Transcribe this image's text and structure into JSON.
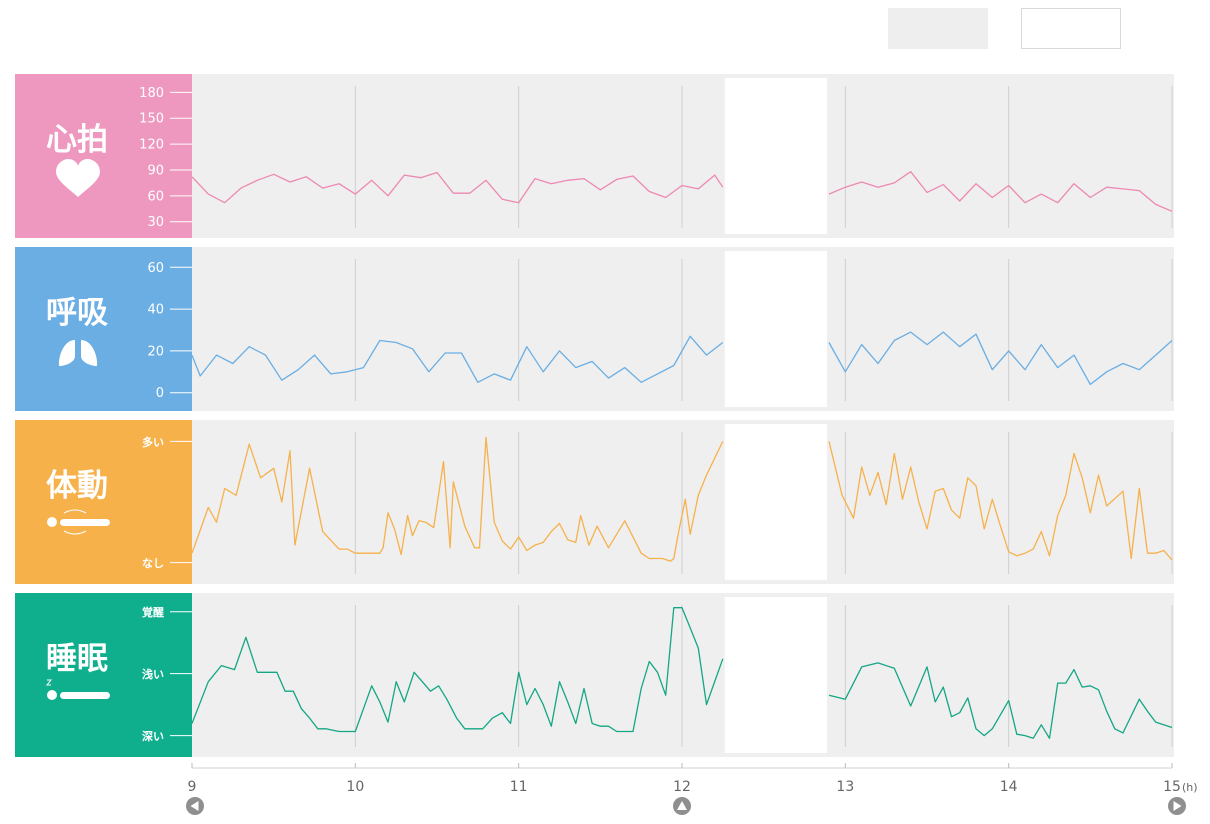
{
  "toolbar": {
    "button_a": "",
    "button_b": ""
  },
  "nav": {
    "prev_icon": "triangle-left-icon",
    "now_icon": "triangle-up-icon",
    "next_icon": "triangle-right-icon"
  },
  "panels": [
    {
      "key": "heart",
      "title": "心拍",
      "icon": "heart-icon",
      "color": "#ee98bf",
      "line": "#ee88b3",
      "ticks": [
        "180",
        "150",
        "120",
        "90",
        "60",
        "30"
      ]
    },
    {
      "key": "breath",
      "title": "呼吸",
      "icon": "lungs-icon",
      "color": "#6aaee3",
      "line": "#6aaee3",
      "ticks": [
        "60",
        "40",
        "20",
        "0"
      ]
    },
    {
      "key": "motion",
      "title": "体動",
      "icon": "lying-person-moving-icon",
      "color": "#f6b14b",
      "line": "#f6b14b",
      "ticks": [
        "多い",
        "なし"
      ]
    },
    {
      "key": "sleep",
      "title": "睡眠",
      "icon": "sleeping-person-icon",
      "color": "#0faf8e",
      "line": "#14a685",
      "ticks": [
        "覚醒",
        "浅い",
        "深い"
      ]
    }
  ],
  "chart_data": {
    "type": "line",
    "x_unit": "(h)",
    "x_ticks": [
      9,
      10,
      11,
      12,
      13,
      14,
      15
    ],
    "xlim": [
      9,
      15
    ],
    "gap": [
      12.25,
      12.9
    ],
    "grid": true,
    "series": [
      {
        "name": "心拍",
        "ylim": [
          25,
          185
        ],
        "ticks": [
          180,
          150,
          120,
          90,
          60,
          30
        ],
        "x": [
          9.0,
          9.1,
          9.2,
          9.3,
          9.4,
          9.5,
          9.6,
          9.7,
          9.8,
          9.9,
          10.0,
          10.1,
          10.2,
          10.3,
          10.4,
          10.5,
          10.6,
          10.7,
          10.8,
          10.9,
          11.0,
          11.1,
          11.2,
          11.3,
          11.4,
          11.5,
          11.6,
          11.7,
          11.8,
          11.9,
          12.0,
          12.1,
          12.2,
          12.25,
          12.9,
          13.0,
          13.1,
          13.2,
          13.3,
          13.4,
          13.5,
          13.6,
          13.7,
          13.8,
          13.9,
          14.0,
          14.1,
          14.2,
          14.3,
          14.4,
          14.5,
          14.6,
          14.7,
          14.8,
          14.9,
          15.0
        ],
        "values": [
          82,
          62,
          52,
          69,
          78,
          85,
          76,
          82,
          69,
          74,
          62,
          78,
          60,
          84,
          81,
          87,
          63,
          63,
          78,
          56,
          52,
          80,
          74,
          78,
          80,
          67,
          79,
          83,
          65,
          58,
          72,
          68,
          84,
          70,
          62,
          70,
          76,
          70,
          75,
          88,
          64,
          73,
          54,
          74,
          58,
          72,
          52,
          62,
          52,
          74,
          58,
          70,
          68,
          66,
          50,
          42
        ]
      },
      {
        "name": "呼吸",
        "ylim": [
          -3,
          63
        ],
        "ticks": [
          60,
          40,
          20,
          0
        ],
        "x": [
          9.0,
          9.05,
          9.15,
          9.25,
          9.35,
          9.45,
          9.55,
          9.65,
          9.75,
          9.85,
          9.95,
          10.05,
          10.15,
          10.25,
          10.35,
          10.45,
          10.55,
          10.65,
          10.75,
          10.85,
          10.95,
          11.05,
          11.15,
          11.25,
          11.35,
          11.45,
          11.55,
          11.65,
          11.75,
          11.85,
          11.95,
          12.05,
          12.15,
          12.25,
          12.9,
          13.0,
          13.1,
          13.2,
          13.3,
          13.4,
          13.5,
          13.6,
          13.7,
          13.8,
          13.9,
          14.0,
          14.1,
          14.2,
          14.3,
          14.4,
          14.5,
          14.6,
          14.7,
          14.8,
          14.9,
          15.0
        ],
        "values": [
          18,
          8,
          18,
          14,
          22,
          18,
          6,
          11,
          18,
          9,
          10,
          12,
          25,
          24,
          21,
          10,
          19,
          19,
          5,
          9,
          6,
          22,
          10,
          20,
          12,
          15,
          7,
          12,
          5,
          9,
          13,
          27,
          18,
          24,
          24,
          10,
          23,
          14,
          25,
          29,
          23,
          29,
          22,
          28,
          11,
          20,
          11,
          23,
          12,
          18,
          4,
          10,
          14,
          11,
          18,
          25
        ]
      },
      {
        "name": "体動",
        "ylim": [
          -2,
          102
        ],
        "ticks": [
          95,
          5
        ],
        "x": [
          9.0,
          9.1,
          9.15,
          9.2,
          9.27,
          9.35,
          9.42,
          9.5,
          9.55,
          9.6,
          9.63,
          9.72,
          9.8,
          9.9,
          9.95,
          10.0,
          10.07,
          10.1,
          10.15,
          10.17,
          10.2,
          10.24,
          10.28,
          10.32,
          10.35,
          10.39,
          10.43,
          10.48,
          10.54,
          10.58,
          10.6,
          10.67,
          10.73,
          10.76,
          10.8,
          10.85,
          10.9,
          10.95,
          11.0,
          11.05,
          11.1,
          11.15,
          11.2,
          11.25,
          11.3,
          11.35,
          11.38,
          11.43,
          11.48,
          11.55,
          11.65,
          11.75,
          11.8,
          11.85,
          11.88,
          11.93,
          11.95,
          11.98,
          12.02,
          12.05,
          12.1,
          12.15,
          12.25,
          12.9,
          12.98,
          13.05,
          13.1,
          13.15,
          13.2,
          13.25,
          13.3,
          13.35,
          13.4,
          13.45,
          13.5,
          13.55,
          13.6,
          13.65,
          13.7,
          13.75,
          13.8,
          13.85,
          13.9,
          13.95,
          14.0,
          14.05,
          14.1,
          14.15,
          14.2,
          14.25,
          14.3,
          14.35,
          14.4,
          14.45,
          14.5,
          14.55,
          14.6,
          14.7,
          14.75,
          14.8,
          14.85,
          14.9,
          14.95,
          15.0
        ],
        "values": [
          12,
          46,
          35,
          60,
          55,
          93,
          68,
          75,
          50,
          88,
          18,
          75,
          28,
          15,
          15,
          12,
          12,
          12,
          12,
          16,
          42,
          30,
          11,
          40,
          25,
          36,
          35,
          31,
          80,
          16,
          65,
          32,
          16,
          16,
          98,
          35,
          21,
          15,
          24,
          14,
          18,
          20,
          28,
          34,
          22,
          20,
          40,
          18,
          32,
          16,
          36,
          12,
          8,
          8,
          8,
          6,
          8,
          28,
          52,
          26,
          55,
          70,
          95,
          95,
          55,
          38,
          76,
          55,
          72,
          48,
          86,
          52,
          76,
          50,
          30,
          58,
          60,
          44,
          38,
          68,
          62,
          30,
          52,
          32,
          13,
          10,
          12,
          15,
          28,
          10,
          40,
          55,
          86,
          68,
          42,
          70,
          47,
          58,
          8,
          60,
          12,
          12,
          14,
          7
        ]
      },
      {
        "name": "睡眠",
        "ylim": [
          -2,
          102
        ],
        "ticks": [
          97,
          51,
          5
        ],
        "x": [
          9.0,
          9.1,
          9.18,
          9.26,
          9.33,
          9.4,
          9.52,
          9.57,
          9.62,
          9.67,
          9.72,
          9.77,
          9.82,
          9.9,
          9.95,
          10.0,
          10.1,
          10.15,
          10.2,
          10.25,
          10.3,
          10.36,
          10.41,
          10.46,
          10.51,
          10.56,
          10.62,
          10.67,
          10.73,
          10.78,
          10.84,
          10.9,
          10.95,
          11.0,
          11.05,
          11.1,
          11.15,
          11.2,
          11.25,
          11.3,
          11.35,
          11.4,
          11.45,
          11.5,
          11.55,
          11.6,
          11.65,
          11.7,
          11.75,
          11.8,
          11.85,
          11.9,
          11.95,
          12.0,
          12.05,
          12.1,
          12.15,
          12.25,
          12.9,
          13.0,
          13.1,
          13.2,
          13.3,
          13.4,
          13.5,
          13.55,
          13.6,
          13.65,
          13.7,
          13.75,
          13.8,
          13.85,
          13.9,
          14.0,
          14.05,
          14.1,
          14.15,
          14.2,
          14.25,
          14.3,
          14.35,
          14.4,
          14.45,
          14.5,
          14.55,
          14.6,
          14.65,
          14.7,
          14.8,
          14.85,
          14.9,
          15.0
        ],
        "values": [
          14,
          45,
          57,
          54,
          78,
          52,
          52,
          38,
          38,
          25,
          18,
          10,
          10,
          8,
          8,
          8,
          42,
          30,
          15,
          45,
          30,
          52,
          45,
          38,
          42,
          32,
          18,
          10,
          10,
          10,
          18,
          22,
          14,
          52,
          28,
          40,
          28,
          12,
          45,
          30,
          14,
          40,
          14,
          12,
          12,
          8,
          8,
          8,
          40,
          60,
          52,
          35,
          100,
          100,
          85,
          70,
          28,
          62,
          35,
          32,
          56,
          59,
          55,
          27,
          56,
          30,
          41,
          19,
          22,
          33,
          10,
          5,
          10,
          31,
          6,
          5,
          3,
          13,
          3,
          44,
          44,
          54,
          41,
          42,
          39,
          23,
          10,
          7,
          32,
          23,
          15,
          11
        ]
      }
    ]
  }
}
